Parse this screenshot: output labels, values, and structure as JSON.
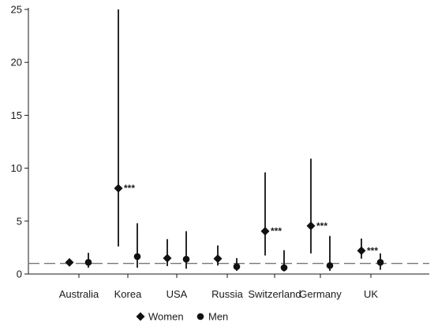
{
  "chart_data": {
    "type": "scatter",
    "subtype": "point-estimate-with-confidence-intervals",
    "title": "",
    "xlabel": "",
    "ylabel": "",
    "categories": [
      "Australia",
      "Korea",
      "USA",
      "Russia",
      "Switzerland",
      "Germany",
      "UK"
    ],
    "ylim": [
      0,
      25
    ],
    "yticks": [
      0,
      5,
      10,
      15,
      20,
      25
    ],
    "reference_line": {
      "y": 1,
      "style": "dashed"
    },
    "grid": false,
    "legend": {
      "position": "bottom"
    },
    "series": [
      {
        "name": "Women",
        "marker": "diamond",
        "values": [
          1.1,
          8.1,
          1.5,
          1.45,
          4.05,
          4.55,
          2.2
        ],
        "ci_low": [
          0.75,
          2.6,
          0.75,
          0.8,
          1.75,
          1.95,
          1.45
        ],
        "ci_high": [
          1.4,
          25.0,
          3.3,
          2.7,
          9.6,
          10.9,
          3.35
        ],
        "annotations": [
          "",
          "***",
          "",
          "",
          "***",
          "***",
          "***"
        ]
      },
      {
        "name": "Men",
        "marker": "circle",
        "values": [
          1.1,
          1.65,
          1.4,
          0.7,
          0.6,
          0.8,
          1.1
        ],
        "ci_low": [
          0.6,
          0.6,
          0.5,
          0.3,
          0.25,
          0.3,
          0.4
        ],
        "ci_high": [
          2.0,
          4.8,
          4.05,
          1.5,
          2.25,
          3.6,
          1.95
        ],
        "annotations": [
          "",
          "",
          "",
          "",
          "",
          "",
          ""
        ]
      }
    ]
  }
}
